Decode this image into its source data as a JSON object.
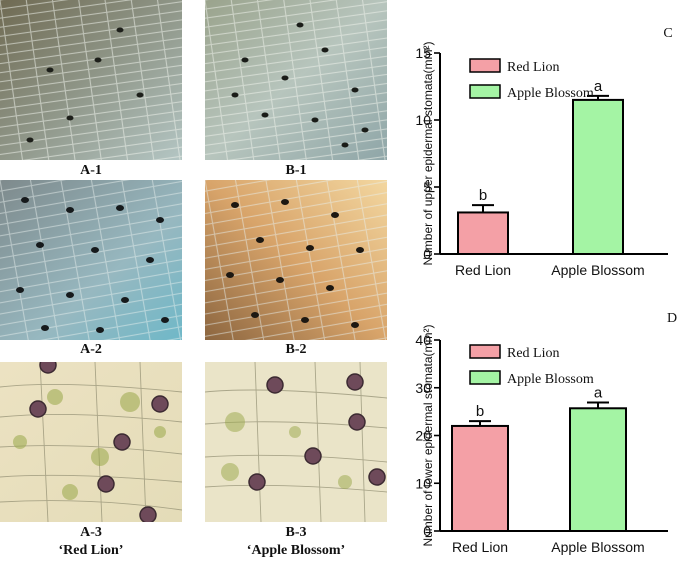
{
  "panels": {
    "a1": {
      "label": "A-1"
    },
    "b1": {
      "label": "B-1"
    },
    "a2": {
      "label": "A-2"
    },
    "b2": {
      "label": "B-2"
    },
    "a3": {
      "label": "A-3",
      "sublabel": "‘Red Lion’"
    },
    "b3": {
      "label": "B-3",
      "sublabel": "‘Apple Blossom’"
    }
  },
  "colors": {
    "red_lion": "#f4a0a6",
    "apple_blossom": "#a4f4a4"
  },
  "chart_data": [
    {
      "type": "bar",
      "panel_letter": "C",
      "ylabel": "Number of upper epidermal stomata(mm²)",
      "categories": [
        "Red Lion",
        "Apple Blossom"
      ],
      "values": [
        3.1,
        11.5
      ],
      "errors": [
        0.55,
        0.3
      ],
      "significance": [
        "b",
        "a"
      ],
      "ylim": [
        0,
        15
      ],
      "yticks": [
        0,
        5,
        10,
        15
      ],
      "legend": [
        "Red Lion",
        "Apple Blossom"
      ],
      "legend_position": "top-left",
      "grid": false
    },
    {
      "type": "bar",
      "panel_letter": "D",
      "ylabel": "Number of lower epidermal stomata(mm²)",
      "categories": [
        "Red Lion",
        "Apple Blossom"
      ],
      "values": [
        22.0,
        25.7
      ],
      "errors": [
        1.0,
        1.2
      ],
      "significance": [
        "b",
        "a"
      ],
      "ylim": [
        0,
        40
      ],
      "yticks": [
        0,
        10,
        20,
        30,
        40
      ],
      "legend": [
        "Red Lion",
        "Apple Blossom"
      ],
      "legend_position": "top-left",
      "grid": false
    }
  ]
}
